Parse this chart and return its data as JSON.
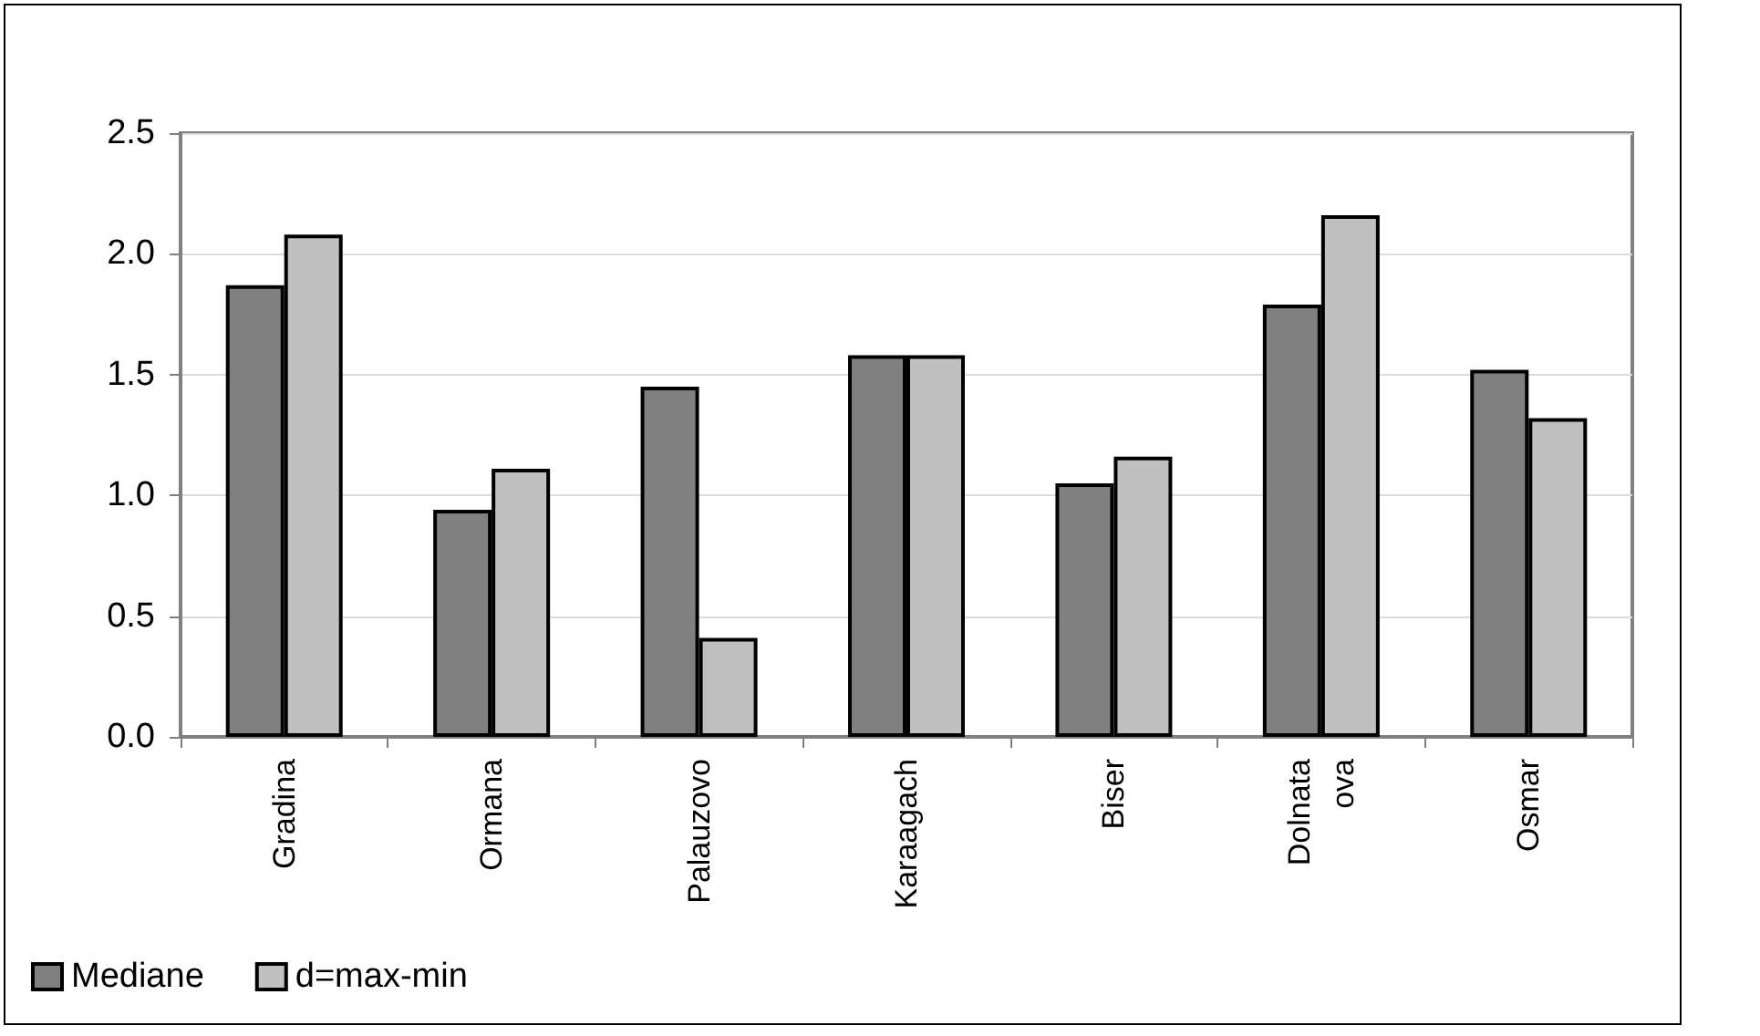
{
  "chart_data": {
    "type": "bar",
    "categories": [
      "Gradina",
      "Ormana",
      "Palauzovo",
      "Karaagach",
      "Biser",
      "Dolnata ova",
      "Osmar"
    ],
    "series": [
      {
        "name": "Mediane",
        "color": "#808080",
        "values": [
          1.87,
          0.94,
          1.45,
          1.58,
          1.05,
          1.79,
          1.52
        ]
      },
      {
        "name": "d=max-min",
        "color": "#c0c0c0",
        "values": [
          2.08,
          1.11,
          0.41,
          1.58,
          1.16,
          2.16,
          1.32
        ]
      }
    ],
    "ylim": [
      0,
      2.5
    ],
    "yticks": [
      {
        "value": 0,
        "label": "0.0"
      },
      0.5,
      {
        "value": 1,
        "label": "1.0"
      },
      1.5,
      {
        "value": 2,
        "label": "2.0"
      },
      2.5
    ],
    "grid": "y",
    "legend": "bottom left"
  }
}
